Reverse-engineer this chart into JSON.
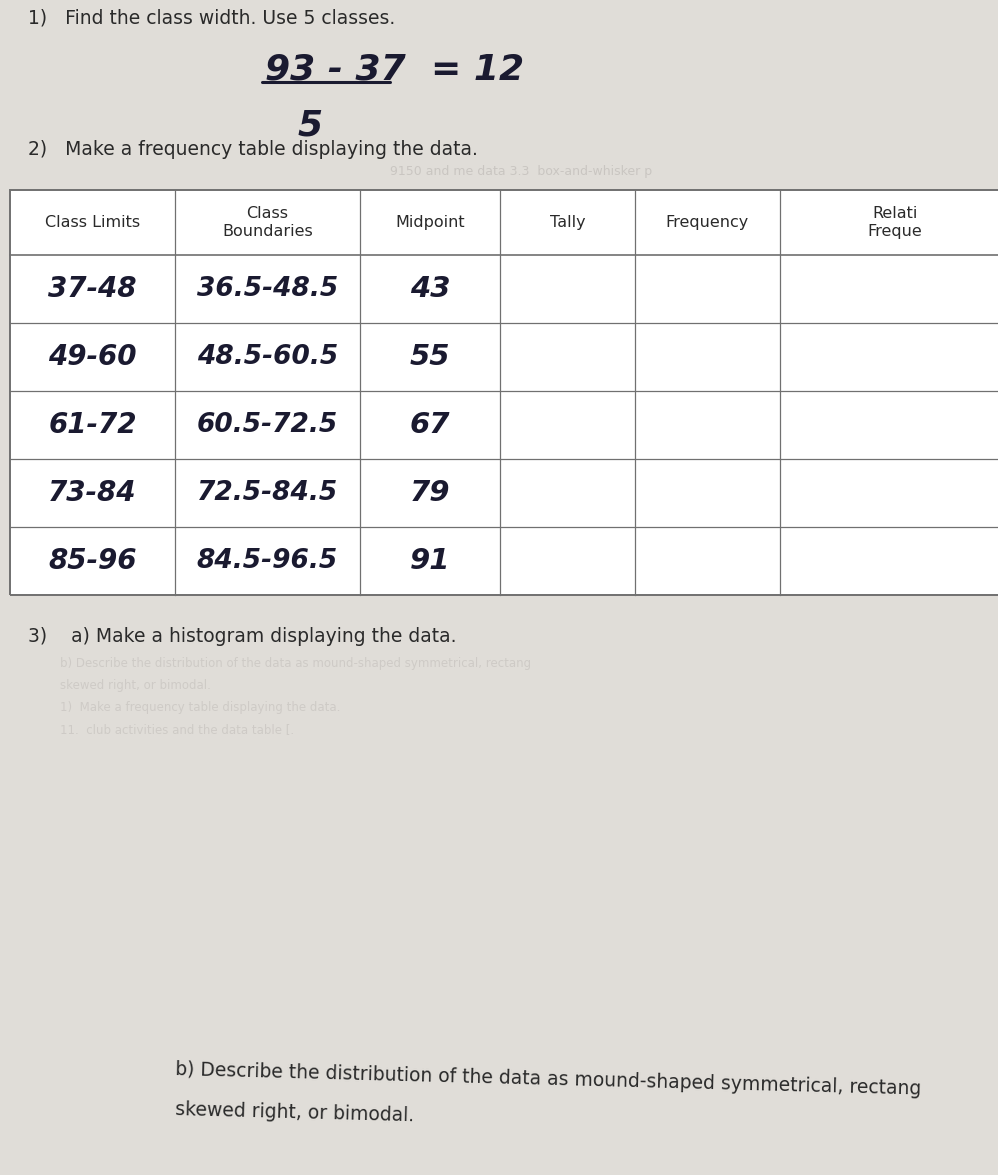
{
  "bg_color": "#e0ddd8",
  "table_bg": "#f0eeeb",
  "printed_color": "#2a2a2a",
  "handwritten_color": "#1a1a30",
  "line_color": "#707070",
  "faded_color": "#c0bcb8",
  "problem2": "2)   Make a frequency table displaying the data.",
  "problem3a": "3)    a) Make a histogram displaying the data.",
  "problem3b_1": "b) Describe the distribution of the data as mound-shaped symmetrical, rectang",
  "problem3b_2": "skewed right, or bimodal.",
  "table_headers": [
    "Class Limits",
    "Class\nBoundaries",
    "Midpoint",
    "Tally",
    "Frequency",
    "Relati\nFreque"
  ],
  "row_data_col0": [
    "37-48",
    "49-60",
    "61-72",
    "73-84",
    "85-96"
  ],
  "row_data_col1": [
    "36.5-48.5",
    "48.5-60.5",
    "60.5-72.5",
    "72.5-84.5",
    "84.5-96.5"
  ],
  "row_data_col2": [
    "43",
    "55",
    "67",
    "79",
    "91"
  ],
  "ghost_lines": [
    "b) Describe the distribution of the data as mound-shaped symmetrical, rectang",
    "skewed right, or bimodal.",
    "1)  Make a frequency table displaying the data.",
    "11.  club activities and the data table [."
  ]
}
